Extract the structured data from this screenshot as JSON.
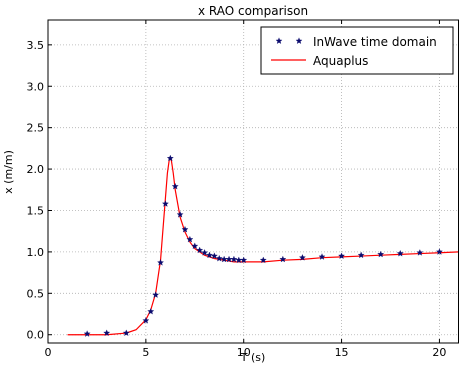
{
  "chart_data": {
    "type": "line",
    "title": "x RAO comparison",
    "xlabel": "T (s)",
    "ylabel": "x (m/m)",
    "xlim": [
      0,
      21
    ],
    "ylim": [
      -0.1,
      3.8
    ],
    "grid": true,
    "legend_position": "top-right",
    "x_ticks": [
      {
        "value": 0,
        "label": "0"
      },
      {
        "value": 5,
        "label": "5"
      },
      {
        "value": 10,
        "label": "10"
      },
      {
        "value": 15,
        "label": "15"
      },
      {
        "value": 20,
        "label": "20"
      }
    ],
    "y_ticks": [
      {
        "value": 0.0,
        "label": "0.0"
      },
      {
        "value": 0.5,
        "label": "0.5"
      },
      {
        "value": 1.0,
        "label": "1.0"
      },
      {
        "value": 1.5,
        "label": "1.5"
      },
      {
        "value": 2.0,
        "label": "2.0"
      },
      {
        "value": 2.5,
        "label": "2.5"
      },
      {
        "value": 3.0,
        "label": "3.0"
      },
      {
        "value": 3.5,
        "label": "3.5"
      }
    ],
    "series": [
      {
        "name": "InWave time domain",
        "style": "star-markers",
        "color": "#0b0b6e",
        "points": [
          [
            2.0,
            0.01
          ],
          [
            3.0,
            0.02
          ],
          [
            4.0,
            0.02
          ],
          [
            5.0,
            0.17
          ],
          [
            5.25,
            0.28
          ],
          [
            5.5,
            0.48
          ],
          [
            5.75,
            0.87
          ],
          [
            6.0,
            1.58
          ],
          [
            6.25,
            2.13
          ],
          [
            6.5,
            1.79
          ],
          [
            6.75,
            1.45
          ],
          [
            7.0,
            1.27
          ],
          [
            7.25,
            1.15
          ],
          [
            7.5,
            1.07
          ],
          [
            7.75,
            1.02
          ],
          [
            8.0,
            0.99
          ],
          [
            8.25,
            0.96
          ],
          [
            8.5,
            0.95
          ],
          [
            8.75,
            0.92
          ],
          [
            9.0,
            0.91
          ],
          [
            9.25,
            0.91
          ],
          [
            9.5,
            0.91
          ],
          [
            9.75,
            0.9
          ],
          [
            10.0,
            0.9
          ],
          [
            11.0,
            0.9
          ],
          [
            12.0,
            0.91
          ],
          [
            13.0,
            0.93
          ],
          [
            14.0,
            0.94
          ],
          [
            15.0,
            0.95
          ],
          [
            16.0,
            0.96
          ],
          [
            17.0,
            0.97
          ],
          [
            18.0,
            0.98
          ],
          [
            19.0,
            0.99
          ],
          [
            20.0,
            1.0
          ]
        ]
      },
      {
        "name": "Aquaplus",
        "style": "line",
        "color": "#ff0000",
        "points": [
          [
            1.0,
            0.0
          ],
          [
            2.0,
            0.0
          ],
          [
            3.0,
            0.0
          ],
          [
            4.0,
            0.02
          ],
          [
            4.5,
            0.06
          ],
          [
            5.0,
            0.18
          ],
          [
            5.25,
            0.3
          ],
          [
            5.5,
            0.5
          ],
          [
            5.75,
            0.9
          ],
          [
            5.9,
            1.35
          ],
          [
            6.0,
            1.65
          ],
          [
            6.1,
            1.95
          ],
          [
            6.2,
            2.12
          ],
          [
            6.3,
            2.11
          ],
          [
            6.4,
            1.95
          ],
          [
            6.5,
            1.75
          ],
          [
            6.75,
            1.42
          ],
          [
            7.0,
            1.24
          ],
          [
            7.25,
            1.12
          ],
          [
            7.5,
            1.04
          ],
          [
            8.0,
            0.96
          ],
          [
            8.5,
            0.92
          ],
          [
            9.0,
            0.9
          ],
          [
            9.5,
            0.88
          ],
          [
            10.0,
            0.88
          ],
          [
            11.0,
            0.88
          ],
          [
            12.0,
            0.9
          ],
          [
            13.0,
            0.91
          ],
          [
            14.0,
            0.93
          ],
          [
            15.0,
            0.94
          ],
          [
            16.0,
            0.95
          ],
          [
            17.0,
            0.96
          ],
          [
            18.0,
            0.97
          ],
          [
            19.0,
            0.98
          ],
          [
            20.0,
            0.99
          ],
          [
            21.0,
            1.0
          ]
        ]
      }
    ]
  }
}
